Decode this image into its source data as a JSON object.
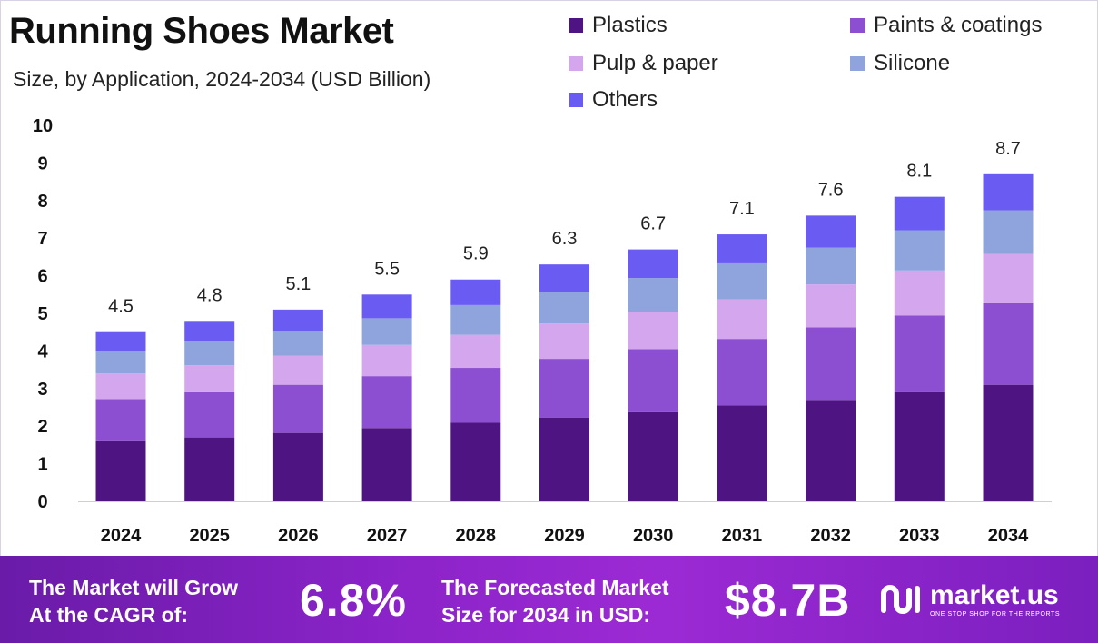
{
  "header": {
    "title": "Running Shoes Market",
    "subtitle": "Size, by Application, 2024-2034 (USD Billion)"
  },
  "legend": [
    {
      "label": "Plastics",
      "color": "#4e1582"
    },
    {
      "label": "Paints & coatings",
      "color": "#8c4fd1"
    },
    {
      "label": "Pulp & paper",
      "color": "#d3a6ee"
    },
    {
      "label": "Silicone",
      "color": "#8fa4dc"
    },
    {
      "label": "Others",
      "color": "#6a5cf2"
    }
  ],
  "chart_data": {
    "type": "bar",
    "stacked": true,
    "title": "Running Shoes Market",
    "subtitle": "Size, by Application, 2024-2034 (USD Billion)",
    "categories": [
      "2024",
      "2025",
      "2026",
      "2027",
      "2028",
      "2029",
      "2030",
      "2031",
      "2032",
      "2033",
      "2034"
    ],
    "totals": [
      4.5,
      4.8,
      5.1,
      5.5,
      5.9,
      6.3,
      6.7,
      7.1,
      7.6,
      8.1,
      8.7
    ],
    "total_labels": [
      "4.5",
      "4.8",
      "5.1",
      "5.5",
      "5.9",
      "6.3",
      "6.7",
      "7.1",
      "7.6",
      "8.1",
      "8.7"
    ],
    "series": [
      {
        "name": "Plastics",
        "color": "#4e1582",
        "values": [
          1.6,
          1.7,
          1.82,
          1.95,
          2.09,
          2.23,
          2.37,
          2.55,
          2.7,
          2.9,
          3.1
        ]
      },
      {
        "name": "Paints & coatings",
        "color": "#8c4fd1",
        "values": [
          1.12,
          1.2,
          1.28,
          1.38,
          1.46,
          1.56,
          1.68,
          1.77,
          1.93,
          2.04,
          2.17
        ]
      },
      {
        "name": "Pulp & paper",
        "color": "#d3a6ee",
        "values": [
          0.68,
          0.72,
          0.77,
          0.83,
          0.88,
          0.94,
          0.99,
          1.05,
          1.14,
          1.2,
          1.31
        ]
      },
      {
        "name": "Silicone",
        "color": "#8fa4dc",
        "values": [
          0.6,
          0.63,
          0.66,
          0.71,
          0.79,
          0.84,
          0.9,
          0.96,
          0.98,
          1.07,
          1.16
        ]
      },
      {
        "name": "Others",
        "color": "#6a5cf2",
        "values": [
          0.5,
          0.55,
          0.57,
          0.63,
          0.68,
          0.73,
          0.76,
          0.77,
          0.85,
          0.89,
          0.96
        ]
      }
    ],
    "ylim": [
      0,
      10
    ],
    "yticks": [
      0,
      1,
      2,
      3,
      4,
      5,
      6,
      7,
      8,
      9,
      10
    ],
    "xlabel": "",
    "ylabel": "",
    "grid": false,
    "legend_position": "top-right"
  },
  "banner": {
    "cagr_text_line1": "The Market will Grow",
    "cagr_text_line2": "At the CAGR of:",
    "cagr_value": "6.8%",
    "forecast_text_line1": "The Forecasted Market",
    "forecast_text_line2": "Size for 2034 in USD:",
    "forecast_value": "$8.7B",
    "brand_name": "market.us",
    "brand_tagline": "ONE STOP SHOP FOR THE REPORTS"
  }
}
